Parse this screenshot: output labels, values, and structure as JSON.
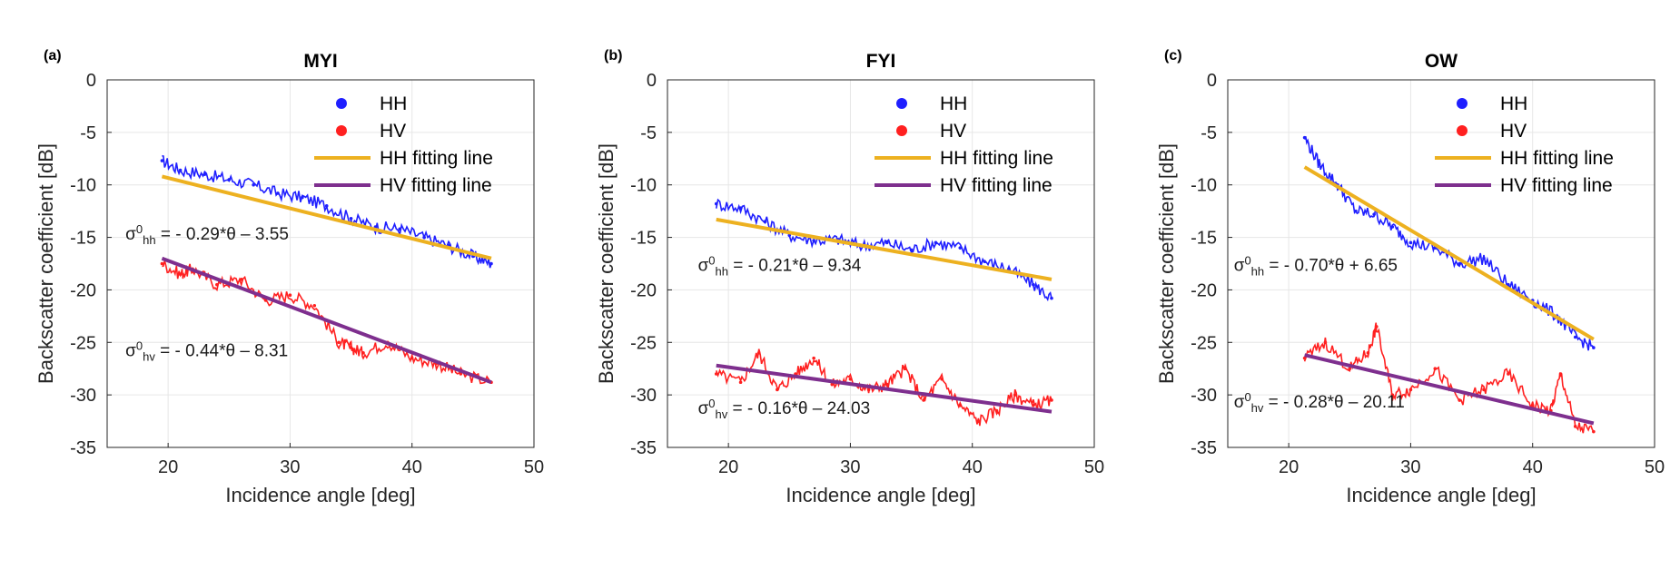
{
  "chart_data": [
    {
      "type": "scatter",
      "panel_label": "(a)",
      "title": "MYI",
      "xlabel": "Incidence angle [deg]",
      "ylabel": "Backscatter coefficient [dB]",
      "xlim": [
        15,
        50
      ],
      "ylim": [
        -35,
        0
      ],
      "xticks": [
        20,
        30,
        40,
        50
      ],
      "yticks": [
        0,
        -5,
        -10,
        -15,
        -20,
        -25,
        -30,
        -35
      ],
      "grid": true,
      "legend_position": "top-right",
      "legend": [
        {
          "label": "HH",
          "kind": "dot",
          "color": "#1f1fff"
        },
        {
          "label": "HV",
          "kind": "dot",
          "color": "#ff2020"
        },
        {
          "label": "HH fitting line",
          "kind": "line",
          "color": "#edb120"
        },
        {
          "label": "HV fitting line",
          "kind": "line",
          "color": "#7e2f8e"
        }
      ],
      "series": [
        {
          "name": "HH",
          "color": "#1f1fff",
          "kind": "scatter",
          "x": [
            19.5,
            21,
            23,
            25,
            27,
            29,
            31,
            33,
            35,
            37,
            39,
            41,
            43,
            45,
            46.5
          ],
          "y": [
            -7.7,
            -8.6,
            -9.0,
            -9.5,
            -10.0,
            -10.8,
            -11.2,
            -12.0,
            -13.2,
            -14.0,
            -14.2,
            -15.0,
            -15.8,
            -16.8,
            -17.5
          ]
        },
        {
          "name": "HV",
          "color": "#ff2020",
          "kind": "scatter",
          "x": [
            19.5,
            21,
            22,
            24,
            26,
            28,
            30,
            32,
            34,
            35,
            36,
            38,
            40,
            42,
            44,
            46.5
          ],
          "y": [
            -17.5,
            -18.5,
            -18.0,
            -19.5,
            -19.0,
            -21.0,
            -20.5,
            -21.5,
            -25.0,
            -25.5,
            -26.0,
            -25.0,
            -26.5,
            -27.0,
            -28.0,
            -28.8
          ]
        },
        {
          "name": "HH fitting line",
          "color": "#edb120",
          "kind": "line",
          "x": [
            19.5,
            46.5
          ],
          "y": [
            -9.2,
            -17.0
          ]
        },
        {
          "name": "HV fitting line",
          "color": "#7e2f8e",
          "kind": "line",
          "x": [
            19.5,
            46.5
          ],
          "y": [
            -17.0,
            -28.8
          ]
        }
      ],
      "annotations": [
        {
          "symbol": "σ",
          "sup": "0",
          "sub": "hh",
          "rest": " = - 0.29*θ – 3.55",
          "x": 16.5,
          "y": -15.2
        },
        {
          "symbol": "σ",
          "sup": "0",
          "sub": "hv",
          "rest": " = - 0.44*θ – 8.31",
          "x": 16.5,
          "y": -26.3
        }
      ]
    },
    {
      "type": "scatter",
      "panel_label": "(b)",
      "title": "FYI",
      "xlabel": "Incidence angle [deg]",
      "ylabel": "Backscatter coefficient [dB]",
      "xlim": [
        15,
        50
      ],
      "ylim": [
        -35,
        0
      ],
      "xticks": [
        20,
        30,
        40,
        50
      ],
      "yticks": [
        0,
        -5,
        -10,
        -15,
        -20,
        -25,
        -30,
        -35
      ],
      "grid": true,
      "legend_position": "top-right",
      "legend": [
        {
          "label": "HH",
          "kind": "dot",
          "color": "#1f1fff"
        },
        {
          "label": "HV",
          "kind": "dot",
          "color": "#ff2020"
        },
        {
          "label": "HH fitting line",
          "kind": "line",
          "color": "#edb120"
        },
        {
          "label": "HV fitting line",
          "kind": "line",
          "color": "#7e2f8e"
        }
      ],
      "series": [
        {
          "name": "HH",
          "color": "#1f1fff",
          "kind": "scatter",
          "x": [
            19,
            21,
            23,
            25,
            27,
            29,
            31,
            33,
            35,
            37,
            39,
            41,
            43,
            45,
            46.5
          ],
          "y": [
            -11.8,
            -12.2,
            -13.5,
            -14.8,
            -15.3,
            -15.2,
            -15.8,
            -15.5,
            -16.2,
            -15.5,
            -16.0,
            -17.3,
            -18.0,
            -19.5,
            -20.8
          ]
        },
        {
          "name": "HV",
          "color": "#ff2020",
          "kind": "scatter",
          "x": [
            19,
            21,
            22.5,
            24,
            25.5,
            27,
            28.5,
            30,
            31.5,
            33,
            34.5,
            36,
            37.5,
            39,
            40.5,
            42,
            43.5,
            45,
            46.5
          ],
          "y": [
            -28.0,
            -28.8,
            -26.0,
            -29.5,
            -28.0,
            -26.5,
            -29.0,
            -28.5,
            -29.5,
            -29.0,
            -27.5,
            -30.5,
            -28.5,
            -31.0,
            -32.5,
            -31.5,
            -30.0,
            -31.0,
            -30.5
          ]
        },
        {
          "name": "HH fitting line",
          "color": "#edb120",
          "kind": "line",
          "x": [
            19,
            46.5
          ],
          "y": [
            -13.3,
            -19.0
          ]
        },
        {
          "name": "HV fitting line",
          "color": "#7e2f8e",
          "kind": "line",
          "x": [
            19,
            46.5
          ],
          "y": [
            -27.2,
            -31.6
          ]
        }
      ],
      "annotations": [
        {
          "symbol": "σ",
          "sup": "0",
          "sub": "hh",
          "rest": " = - 0.21*θ – 9.34",
          "x": 17.5,
          "y": -18.2
        },
        {
          "symbol": "σ",
          "sup": "0",
          "sub": "hv",
          "rest": " = - 0.16*θ – 24.03",
          "x": 17.5,
          "y": -31.8
        }
      ]
    },
    {
      "type": "scatter",
      "panel_label": "(c)",
      "title": "OW",
      "xlabel": "Incidence angle [deg]",
      "ylabel": "Backscatter coefficient [dB]",
      "xlim": [
        15,
        50
      ],
      "ylim": [
        -35,
        0
      ],
      "xticks": [
        20,
        30,
        40,
        50
      ],
      "yticks": [
        0,
        -5,
        -10,
        -15,
        -20,
        -25,
        -30,
        -35
      ],
      "grid": true,
      "legend_position": "top-right",
      "legend": [
        {
          "label": "HH",
          "kind": "dot",
          "color": "#1f1fff"
        },
        {
          "label": "HV",
          "kind": "dot",
          "color": "#ff2020"
        },
        {
          "label": "HH fitting line",
          "kind": "line",
          "color": "#edb120"
        },
        {
          "label": "HV fitting line",
          "kind": "line",
          "color": "#7e2f8e"
        }
      ],
      "series": [
        {
          "name": "HH",
          "color": "#1f1fff",
          "kind": "scatter",
          "x": [
            21.3,
            22.5,
            24,
            25.5,
            27,
            28.5,
            30,
            32,
            34,
            36,
            38,
            40,
            42,
            43.5,
            45
          ],
          "y": [
            -5.5,
            -8.0,
            -10.0,
            -12.5,
            -12.8,
            -14.0,
            -15.5,
            -16.0,
            -17.5,
            -17.0,
            -19.5,
            -21.0,
            -22.5,
            -24.5,
            -25.5
          ]
        },
        {
          "name": "HV",
          "color": "#ff2020",
          "kind": "scatter",
          "x": [
            21.3,
            23,
            25,
            26.5,
            27.2,
            28.5,
            30,
            32,
            34,
            36,
            38,
            40,
            41.5,
            42.3,
            43.5,
            45
          ],
          "y": [
            -26.5,
            -25.0,
            -27.5,
            -26.0,
            -23.5,
            -30.0,
            -29.5,
            -27.5,
            -30.5,
            -29.5,
            -28.0,
            -31.0,
            -31.5,
            -28.0,
            -33.0,
            -33.5
          ]
        },
        {
          "name": "HH fitting line",
          "color": "#edb120",
          "kind": "line",
          "x": [
            21.3,
            45
          ],
          "y": [
            -8.3,
            -24.7
          ]
        },
        {
          "name": "HV fitting line",
          "color": "#7e2f8e",
          "kind": "line",
          "x": [
            21.3,
            45
          ],
          "y": [
            -26.2,
            -32.7
          ]
        }
      ],
      "annotations": [
        {
          "symbol": "σ",
          "sup": "0",
          "sub": "hh",
          "rest": " = - 0.70*θ + 6.65",
          "x": 15.5,
          "y": -18.2
        },
        {
          "symbol": "σ",
          "sup": "0",
          "sub": "hv",
          "rest": " = - 0.28*θ – 20.11",
          "x": 15.5,
          "y": -31.2
        }
      ]
    }
  ]
}
